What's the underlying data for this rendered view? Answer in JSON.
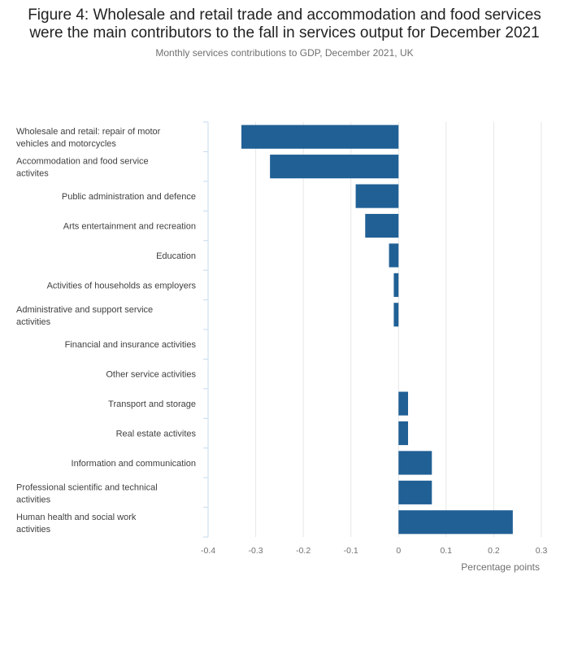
{
  "chart_data": {
    "type": "bar",
    "orientation": "horizontal",
    "title_lines": [
      "Figure 4: Wholesale and retail trade and accommodation and food services",
      "were the main contributors to the fall in services output for December 2021"
    ],
    "subtitle": "Monthly services contributions to GDP, December 2021, UK",
    "categories": [
      "Wholesale and retail: repair of motor vehicles and motorcycles",
      "Accommodation and food service activites",
      "Public administration and defence",
      "Arts entertainment and recreation",
      "Education",
      "Activities of households as employers",
      "Administrative and support service activities",
      "Financial and insurance activities",
      "Other service activities",
      "Transport and storage",
      "Real estate activites",
      "Information and communication",
      "Professional scientific and technical activities",
      "Human health and social work activities"
    ],
    "values": [
      -0.33,
      -0.27,
      -0.09,
      -0.07,
      -0.02,
      -0.01,
      -0.01,
      0.0,
      0.0,
      0.02,
      0.02,
      0.07,
      0.07,
      0.24
    ],
    "xlabel": "Percentage points",
    "ylabel": "",
    "xlim": [
      -0.4,
      0.3
    ],
    "xticks": [
      -0.4,
      -0.3,
      -0.2,
      -0.1,
      0,
      0.1,
      0.2,
      0.3
    ],
    "xtick_labels": [
      "-0.4",
      "-0.3",
      "-0.2",
      "-0.1",
      "0",
      "0.1",
      "0.2",
      "0.3"
    ],
    "grid": "vertical",
    "bar_color": "#206095",
    "grid_color": "#e6e6e6",
    "axis_color": "#c6dbef"
  }
}
